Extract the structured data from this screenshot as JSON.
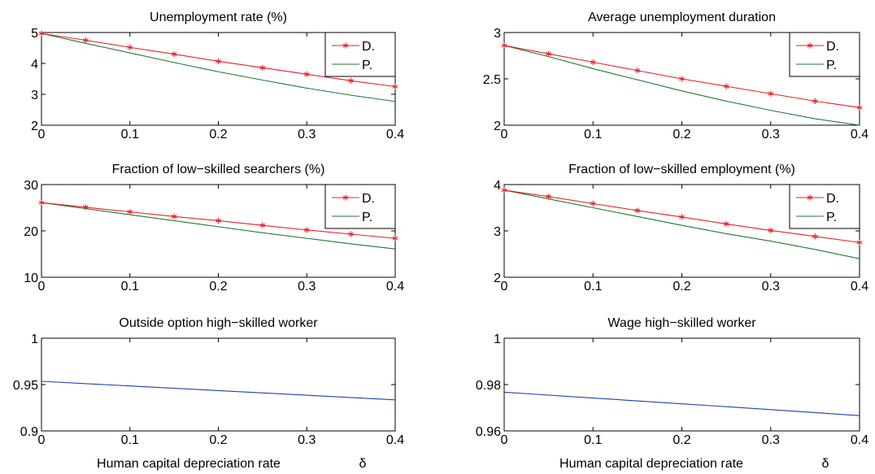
{
  "chart_data": [
    {
      "type": "line",
      "title": "Unemployment rate (%)",
      "xlabel": "",
      "ylabel": "",
      "xlim": [
        0,
        0.4
      ],
      "ylim": [
        2,
        5
      ],
      "xticks": [
        "0",
        "0.1",
        "0.2",
        "0.3",
        "0.4"
      ],
      "yticks": [
        "2",
        "3",
        "4",
        "5"
      ],
      "legend_position": "top-right",
      "series": [
        {
          "name": "D.",
          "color": "#e8202a",
          "marker": "star",
          "x": [
            0,
            0.05,
            0.1,
            0.15,
            0.2,
            0.25,
            0.3,
            0.35,
            0.4
          ],
          "y": [
            4.97,
            4.75,
            4.52,
            4.3,
            4.07,
            3.86,
            3.65,
            3.44,
            3.25
          ]
        },
        {
          "name": "P.",
          "color": "#1f7a2e",
          "marker": "none",
          "x": [
            0,
            0.05,
            0.1,
            0.15,
            0.2,
            0.25,
            0.3,
            0.35,
            0.4
          ],
          "y": [
            4.97,
            4.65,
            4.34,
            4.03,
            3.73,
            3.46,
            3.2,
            2.97,
            2.77
          ]
        }
      ]
    },
    {
      "type": "line",
      "title": "Average unemployment duration",
      "xlabel": "",
      "ylabel": "",
      "xlim": [
        0,
        0.4
      ],
      "ylim": [
        2,
        3
      ],
      "xticks": [
        "0",
        "0.1",
        "0.2",
        "0.3",
        "0.4"
      ],
      "yticks": [
        "2",
        "2.5",
        "3"
      ],
      "legend_position": "top-right",
      "series": [
        {
          "name": "D.",
          "color": "#e8202a",
          "marker": "star",
          "x": [
            0,
            0.05,
            0.1,
            0.15,
            0.2,
            0.25,
            0.3,
            0.35,
            0.4
          ],
          "y": [
            2.86,
            2.77,
            2.68,
            2.59,
            2.5,
            2.42,
            2.34,
            2.26,
            2.19
          ]
        },
        {
          "name": "P.",
          "color": "#1f7a2e",
          "marker": "none",
          "x": [
            0,
            0.05,
            0.1,
            0.15,
            0.2,
            0.25,
            0.3,
            0.35,
            0.4
          ],
          "y": [
            2.86,
            2.74,
            2.61,
            2.49,
            2.37,
            2.26,
            2.16,
            2.07,
            2.0
          ]
        }
      ]
    },
    {
      "type": "line",
      "title": "Fraction of low−skilled searchers (%)",
      "xlabel": "",
      "ylabel": "",
      "xlim": [
        0,
        0.4
      ],
      "ylim": [
        10,
        30
      ],
      "xticks": [
        "0",
        "0.1",
        "0.2",
        "0.3",
        "0.4"
      ],
      "yticks": [
        "10",
        "20",
        "30"
      ],
      "legend_position": "top-right",
      "series": [
        {
          "name": "D.",
          "color": "#e8202a",
          "marker": "star",
          "x": [
            0,
            0.05,
            0.1,
            0.15,
            0.2,
            0.25,
            0.3,
            0.35,
            0.4
          ],
          "y": [
            26.1,
            25.1,
            24.1,
            23.1,
            22.2,
            21.2,
            20.2,
            19.3,
            18.4
          ]
        },
        {
          "name": "P.",
          "color": "#1f7a2e",
          "marker": "none",
          "x": [
            0,
            0.05,
            0.1,
            0.15,
            0.2,
            0.25,
            0.3,
            0.35,
            0.4
          ],
          "y": [
            26.1,
            24.8,
            23.5,
            22.2,
            20.9,
            19.6,
            18.4,
            17.2,
            16.1
          ]
        }
      ]
    },
    {
      "type": "line",
      "title": "Fraction of low−skilled employment (%)",
      "xlabel": "",
      "ylabel": "",
      "xlim": [
        0,
        0.4
      ],
      "ylim": [
        2,
        4
      ],
      "xticks": [
        "0",
        "0.1",
        "0.2",
        "0.3",
        "0.4"
      ],
      "yticks": [
        "2",
        "3",
        "4"
      ],
      "legend_position": "top-right",
      "series": [
        {
          "name": "D.",
          "color": "#e8202a",
          "marker": "star",
          "x": [
            0,
            0.05,
            0.1,
            0.15,
            0.2,
            0.25,
            0.3,
            0.35,
            0.4
          ],
          "y": [
            3.88,
            3.74,
            3.59,
            3.44,
            3.3,
            3.15,
            3.01,
            2.88,
            2.75
          ]
        },
        {
          "name": "P.",
          "color": "#1f7a2e",
          "marker": "none",
          "x": [
            0,
            0.05,
            0.1,
            0.15,
            0.2,
            0.25,
            0.3,
            0.35,
            0.4
          ],
          "y": [
            3.88,
            3.69,
            3.5,
            3.31,
            3.12,
            2.94,
            2.78,
            2.6,
            2.4
          ]
        }
      ]
    },
    {
      "type": "line",
      "title": "Outside option high−skilled worker",
      "xlabel": "Human capital depreciation rate",
      "xlabel_symbol": "δ",
      "ylabel": "",
      "xlim": [
        0,
        0.4
      ],
      "ylim": [
        0.9,
        1
      ],
      "xticks": [
        "0",
        "0.1",
        "0.2",
        "0.3",
        "0.4"
      ],
      "yticks": [
        "0.9",
        "0.95",
        "1"
      ],
      "series": [
        {
          "color": "#1f3fb0",
          "marker": "none",
          "x": [
            0,
            0.1,
            0.2,
            0.3,
            0.4
          ],
          "y": [
            0.9535,
            0.9485,
            0.9435,
            0.9385,
            0.9335
          ]
        }
      ]
    },
    {
      "type": "line",
      "title": "Wage high−skilled worker",
      "xlabel": "Human capital depreciation rate",
      "xlabel_symbol": "δ",
      "ylabel": "",
      "xlim": [
        0,
        0.4
      ],
      "ylim": [
        0.96,
        1
      ],
      "xticks": [
        "0",
        "0.1",
        "0.2",
        "0.3",
        "0.4"
      ],
      "yticks": [
        "0.96",
        "0.98",
        "1"
      ],
      "series": [
        {
          "color": "#1f3fb0",
          "marker": "none",
          "x": [
            0,
            0.1,
            0.2,
            0.3,
            0.4
          ],
          "y": [
            0.9767,
            0.9742,
            0.9717,
            0.9692,
            0.9666
          ]
        }
      ]
    }
  ]
}
